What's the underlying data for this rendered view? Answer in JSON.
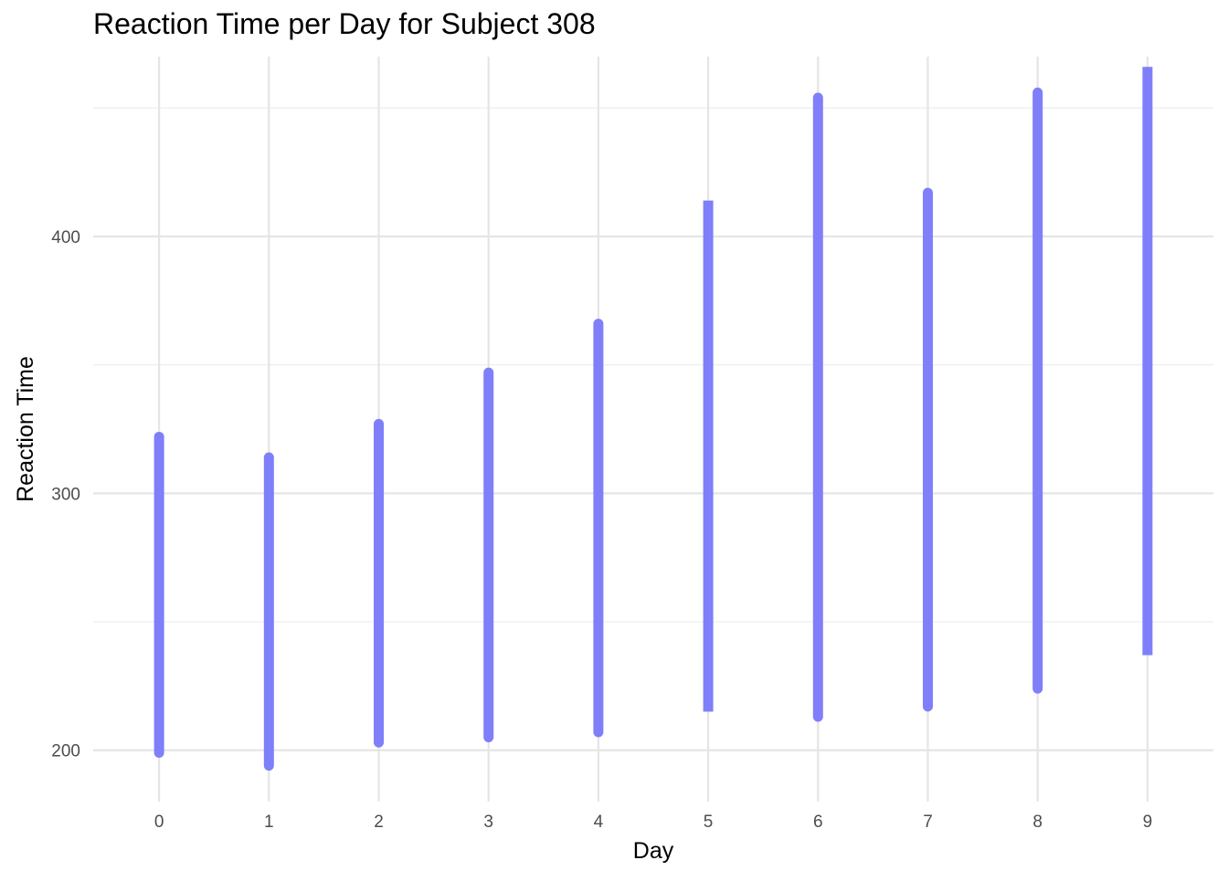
{
  "chart_data": {
    "type": "line",
    "title": "Reaction Time per Day for Subject 308",
    "xlabel": "Day",
    "ylabel": "Reaction Time",
    "x": [
      0,
      1,
      2,
      3,
      4,
      5,
      6,
      7,
      8,
      9
    ],
    "ranges": [
      {
        "day": 0,
        "low": 199,
        "high": 322
      },
      {
        "day": 1,
        "low": 194,
        "high": 314
      },
      {
        "day": 2,
        "low": 203,
        "high": 327
      },
      {
        "day": 3,
        "low": 205,
        "high": 347
      },
      {
        "day": 4,
        "low": 207,
        "high": 366
      },
      {
        "day": 5,
        "low": 215,
        "high": 414
      },
      {
        "day": 6,
        "low": 213,
        "high": 454
      },
      {
        "day": 7,
        "low": 217,
        "high": 417
      },
      {
        "day": 8,
        "low": 224,
        "high": 456
      },
      {
        "day": 9,
        "low": 237,
        "high": 466
      }
    ],
    "xlim": [
      -0.6,
      9.6
    ],
    "ylim": [
      180,
      470
    ],
    "y_ticks": [
      200,
      300,
      400
    ],
    "y_minor_ticks": [
      250,
      350,
      450
    ],
    "grid": true,
    "series_color": "#7f7ffa"
  }
}
